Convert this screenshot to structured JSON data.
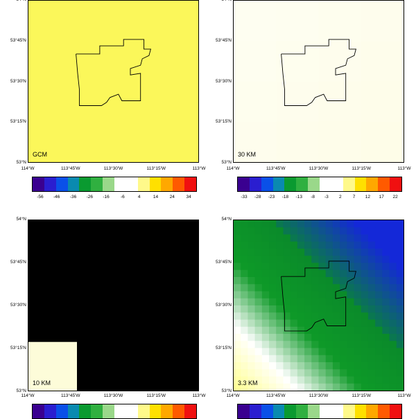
{
  "lat_ticks": [
    "53°N",
    "53°15'N",
    "53°30'N",
    "53°45'N",
    "54°N"
  ],
  "lon_ticks": [
    "114°W",
    "113°45'W",
    "113°30'W",
    "113°15'W",
    "113°W"
  ],
  "panels": [
    {
      "label": "GCM",
      "colorbar_ticks": [
        "-56",
        "-46",
        "-36",
        "-26",
        "-16",
        "-6",
        "4",
        "14",
        "24",
        "34"
      ]
    },
    {
      "label": "30 KM",
      "colorbar_ticks": [
        "-33",
        "-28",
        "-23",
        "-18",
        "-13",
        "-8",
        "-3",
        "2",
        "7",
        "12",
        "17",
        "22"
      ]
    },
    {
      "label": "10 KM",
      "colorbar_ticks": []
    },
    {
      "label": "3.3 KM",
      "colorbar_ticks": []
    }
  ],
  "colors": {
    "gcm_fill": "#fbf75a",
    "km30_fill": "#fefde8",
    "km10_base": "#e8f3e0",
    "km33_blue": "#1428d8",
    "km33_green": "#0e9a28"
  }
}
